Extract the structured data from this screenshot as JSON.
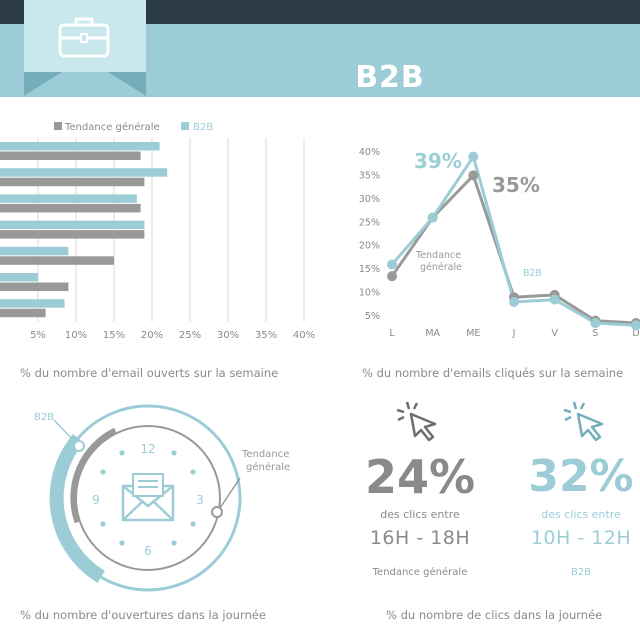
{
  "header": {
    "title": "B2B",
    "icon": "briefcase-icon"
  },
  "colors": {
    "grey": "#999999",
    "blue": "#9ccdd7",
    "dark_blue": "#74aebb",
    "navy": "#2b3a47"
  },
  "legend": {
    "general": "Tendance générale",
    "b2b": "B2B"
  },
  "chart_data": [
    {
      "type": "bar",
      "orientation": "horizontal",
      "title": "",
      "xlabel": "% du nombre d'email ouverts sur la semaine",
      "x_ticks": [
        "5%",
        "10%",
        "15%",
        "20%",
        "25%",
        "30%",
        "35%",
        "40%"
      ],
      "xlim": [
        0,
        40
      ],
      "grid": true,
      "legend_position": "top",
      "series": [
        {
          "name": "Tendance générale",
          "values": [
            18.5,
            19,
            18.5,
            19,
            15,
            9,
            6
          ]
        },
        {
          "name": "B2B",
          "values": [
            21,
            22,
            18,
            19,
            9,
            5,
            8.5
          ]
        }
      ]
    },
    {
      "type": "line",
      "title": "",
      "xlabel": "% du nombre d'emails cliqués sur la semaine",
      "categories": [
        "L",
        "MA",
        "ME",
        "J",
        "V",
        "S",
        "D"
      ],
      "y_ticks": [
        "40%",
        "35%",
        "30%",
        "25%",
        "20%",
        "15%",
        "10%",
        "5%"
      ],
      "ylim": [
        0,
        40
      ],
      "series": [
        {
          "name": "Tendance générale",
          "values": [
            13.5,
            26,
            35,
            9,
            9.5,
            4,
            3.5
          ]
        },
        {
          "name": "B2B",
          "values": [
            16,
            26,
            39,
            8,
            8.5,
            3.5,
            3
          ]
        }
      ],
      "annotations": {
        "b2b_peak": "39%",
        "general_peak": "35%",
        "general_label": "Tendance générale",
        "b2b_label": "B2B"
      }
    }
  ],
  "clock": {
    "caption": "% du nombre d'ouvertures dans la journée",
    "label_b2b": "B2B",
    "label_general": "Tendance générale",
    "hours": {
      "h12": "12",
      "h3": "3",
      "h6": "6",
      "h9": "9"
    },
    "icon": "envelope-icon"
  },
  "clicks": {
    "caption": "% du nombre de clics dans la journée",
    "general": {
      "pct": "24%",
      "text": "des clics entre",
      "range": "16H - 18H",
      "label": "Tendance générale"
    },
    "b2b": {
      "pct": "32%",
      "text": "des clics entre",
      "range": "10H - 12H",
      "label": "B2B"
    },
    "icon": "cursor-click-icon"
  }
}
